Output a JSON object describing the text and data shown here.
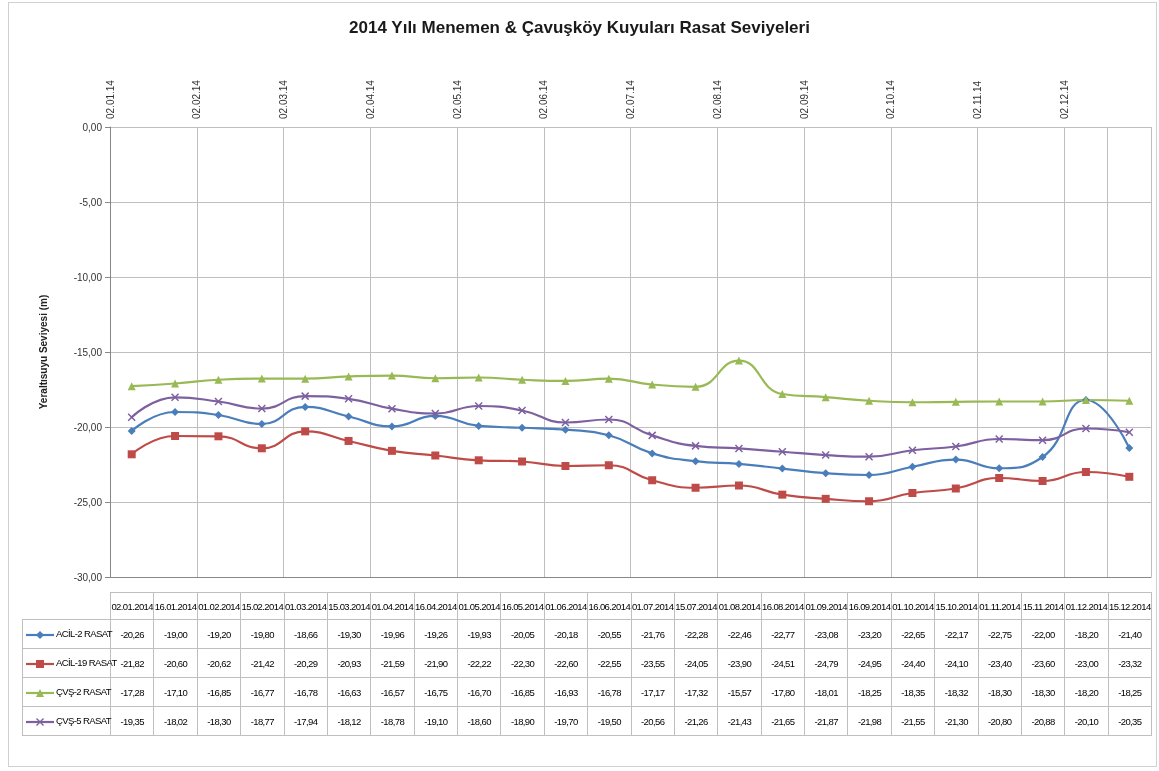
{
  "chart_data": {
    "type": "line",
    "title": "2014 Yılı Menemen & Çavuşköy Kuyuları Rasat Seviyeleri",
    "ylabel": "Yeraltısuyu Seviyesi (m)",
    "categories": [
      "02.01.2014",
      "16.01.2014",
      "01.02.2014",
      "15.02.2014",
      "01.03.2014",
      "15.03.2014",
      "01.04.2014",
      "16.04.2014",
      "01.05.2014",
      "16.05.2014",
      "01.06.2014",
      "16.06.2014",
      "01.07.2014",
      "15.07.2014",
      "01.08.2014",
      "16.08.2014",
      "01.09.2014",
      "16.09.2014",
      "01.10.2014",
      "15.10.2014",
      "01.11.2014",
      "15.11.2014",
      "01.12.2014",
      "15.12.2014"
    ],
    "annotations": [
      "02.01.14",
      "02.02.14",
      "02.03.14",
      "02.04.14",
      "02.05.14",
      "02.06.14",
      "02.07.14",
      "02.08.14",
      "02.09.14",
      "02.10.14",
      "02.11.14",
      "02.12.14"
    ],
    "ylim": [
      -30,
      0
    ],
    "yticks": [
      {
        "value": -30,
        "label": "-30,00"
      },
      {
        "value": -25,
        "label": "-25,00"
      },
      {
        "value": -20,
        "label": "-20,00"
      },
      {
        "value": -15,
        "label": "-15,00"
      },
      {
        "value": -10,
        "label": "-10,00"
      },
      {
        "value": -5,
        "label": "-5,00"
      },
      {
        "value": 0,
        "label": "0,00"
      }
    ],
    "grid": true,
    "legend": "bottom left",
    "series": [
      {
        "name": "ACİL-2 RASAT",
        "color": "#4a7ebb",
        "marker": "diamond",
        "values": [
          -20.26,
          -19.0,
          -19.2,
          -19.8,
          -18.66,
          -19.3,
          -19.96,
          -19.26,
          -19.93,
          -20.05,
          -20.18,
          -20.55,
          -21.76,
          -22.28,
          -22.46,
          -22.77,
          -23.08,
          -23.2,
          -22.65,
          -22.17,
          -22.75,
          -22.0,
          -18.2,
          -21.4
        ],
        "value_labels": [
          "-20,26",
          "-19,00",
          "-19,20",
          "-19,80",
          "-18,66",
          "-19,30",
          "-19,96",
          "-19,26",
          "-19,93",
          "-20,05",
          "-20,18",
          "-20,55",
          "-21,76",
          "-22,28",
          "-22,46",
          "-22,77",
          "-23,08",
          "-23,20",
          "-22,65",
          "-22,17",
          "-22,75",
          "-22,00",
          "-18,20",
          "-21,40"
        ]
      },
      {
        "name": "ACİL-19 RASAT",
        "color": "#be4b48",
        "marker": "square",
        "values": [
          -21.82,
          -20.6,
          -20.62,
          -21.42,
          -20.29,
          -20.93,
          -21.59,
          -21.9,
          -22.22,
          -22.3,
          -22.6,
          -22.55,
          -23.55,
          -24.05,
          -23.9,
          -24.51,
          -24.79,
          -24.95,
          -24.4,
          -24.1,
          -23.4,
          -23.6,
          -23.0,
          -23.32
        ],
        "value_labels": [
          "-21,82",
          "-20,60",
          "-20,62",
          "-21,42",
          "-20,29",
          "-20,93",
          "-21,59",
          "-21,90",
          "-22,22",
          "-22,30",
          "-22,60",
          "-22,55",
          "-23,55",
          "-24,05",
          "-23,90",
          "-24,51",
          "-24,79",
          "-24,95",
          "-24,40",
          "-24,10",
          "-23,40",
          "-23,60",
          "-23,00",
          "-23,32"
        ]
      },
      {
        "name": "ÇVŞ-2 RASAT",
        "color": "#98b954",
        "marker": "triangle",
        "values": [
          -17.28,
          -17.1,
          -16.85,
          -16.77,
          -16.78,
          -16.63,
          -16.57,
          -16.75,
          -16.7,
          -16.85,
          -16.93,
          -16.78,
          -17.17,
          -17.32,
          -15.57,
          -17.8,
          -18.01,
          -18.25,
          -18.35,
          -18.32,
          -18.3,
          -18.3,
          -18.2,
          -18.25
        ],
        "value_labels": [
          "-17,28",
          "-17,10",
          "-16,85",
          "-16,77",
          "-16,78",
          "-16,63",
          "-16,57",
          "-16,75",
          "-16,70",
          "-16,85",
          "-16,93",
          "-16,78",
          "-17,17",
          "-17,32",
          "-15,57",
          "-17,80",
          "-18,01",
          "-18,25",
          "-18,35",
          "-18,32",
          "-18,30",
          "-18,30",
          "-18,20",
          "-18,25"
        ]
      },
      {
        "name": "ÇVŞ-5 RASAT",
        "color": "#7d60a0",
        "marker": "cross",
        "values": [
          -19.35,
          -18.02,
          -18.3,
          -18.77,
          -17.94,
          -18.12,
          -18.78,
          -19.1,
          -18.6,
          -18.9,
          -19.7,
          -19.5,
          -20.56,
          -21.26,
          -21.43,
          -21.65,
          -21.87,
          -21.98,
          -21.55,
          -21.3,
          -20.8,
          -20.88,
          -20.1,
          -20.35
        ],
        "value_labels": [
          "-19,35",
          "-18,02",
          "-18,30",
          "-18,77",
          "-17,94",
          "-18,12",
          "-18,78",
          "-19,10",
          "-18,60",
          "-18,90",
          "-19,70",
          "-19,50",
          "-20,56",
          "-21,26",
          "-21,43",
          "-21,65",
          "-21,87",
          "-21,98",
          "-21,55",
          "-21,30",
          "-20,80",
          "-20,88",
          "-20,10",
          "-20,35"
        ]
      }
    ]
  }
}
